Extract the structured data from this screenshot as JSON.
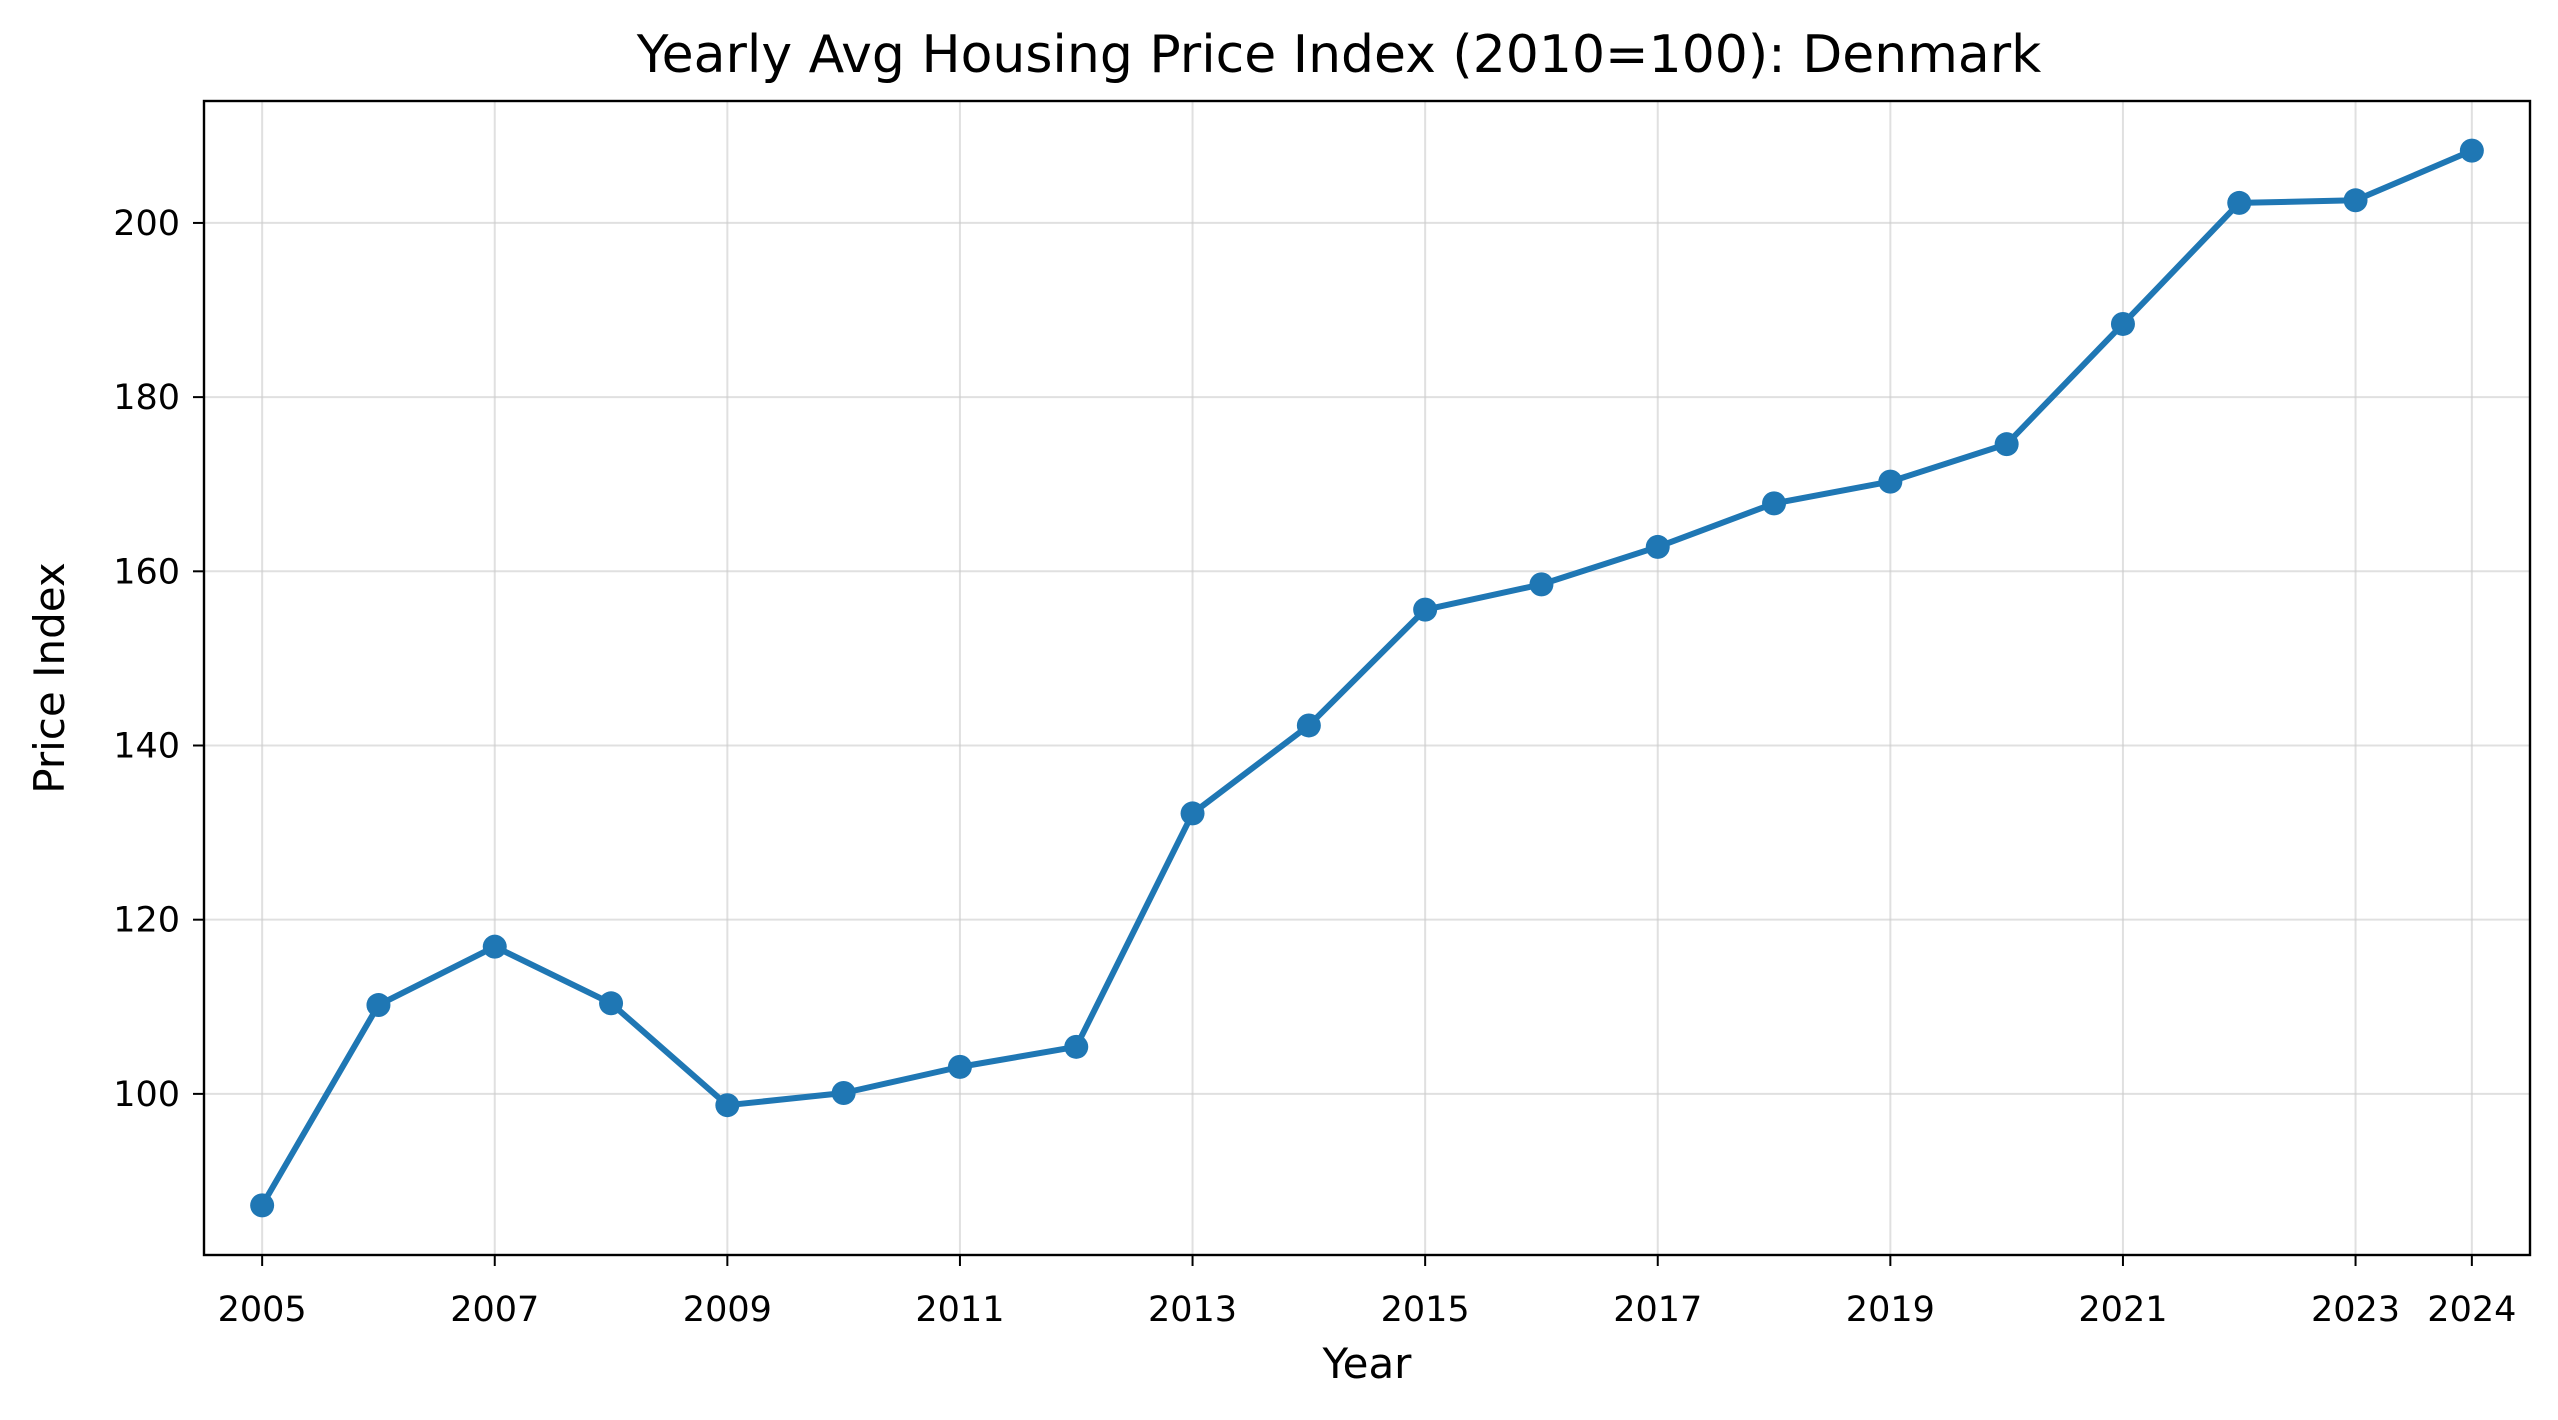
{
  "chart_data": {
    "type": "line",
    "title": "Yearly Avg Housing Price Index (2010=100): Denmark",
    "xlabel": "Year",
    "ylabel": "Price Index",
    "x": [
      2005,
      2006,
      2007,
      2008,
      2009,
      2010,
      2011,
      2012,
      2013,
      2014,
      2015,
      2016,
      2017,
      2018,
      2019,
      2020,
      2021,
      2022,
      2023,
      2024
    ],
    "x_ticks": [
      2005,
      2007,
      2009,
      2011,
      2013,
      2015,
      2017,
      2019,
      2021,
      2023,
      2024
    ],
    "y_ticks": [
      100,
      120,
      140,
      160,
      180,
      200
    ],
    "xlim": [
      2004.5,
      2024.5
    ],
    "ylim": [
      81.5,
      214
    ],
    "grid": true,
    "series": [
      {
        "color": "#1f77b4",
        "marker": "circle",
        "values": [
          87.2,
          110.2,
          116.9,
          110.4,
          98.7,
          100.1,
          103.1,
          105.4,
          132.2,
          142.3,
          155.6,
          158.5,
          162.8,
          167.8,
          170.3,
          174.6,
          188.4,
          202.3,
          202.6,
          208.3
        ]
      }
    ]
  }
}
